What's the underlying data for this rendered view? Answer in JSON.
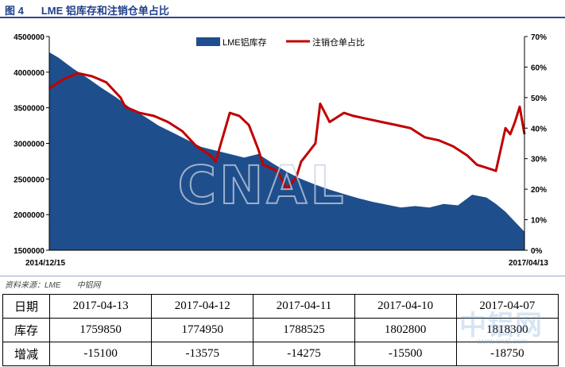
{
  "header": {
    "figure_label": "图 4",
    "title": "LME 铝库存和注销仓单占比"
  },
  "source": {
    "label": "资料来源：LME",
    "org": "中铝网"
  },
  "watermark": {
    "main": "CNAL",
    "brand": "中铝网",
    "site": "www.cnal.com"
  },
  "colors": {
    "area": "#1f4e8c",
    "line": "#c00000"
  },
  "chart_data": {
    "type": "area+line",
    "title": "",
    "x_start_label": "2014/12/15",
    "x_end_label": "2017/04/13",
    "y_left": {
      "min": 1500000,
      "max": 4500000,
      "step": 500000,
      "ticks": [
        "1500000",
        "2000000",
        "2500000",
        "3000000",
        "3500000",
        "4000000",
        "4500000"
      ]
    },
    "y_right": {
      "min": 0,
      "max": 70,
      "step": 10,
      "ticks": [
        "0%",
        "10%",
        "20%",
        "30%",
        "40%",
        "50%",
        "60%",
        "70%"
      ]
    },
    "grid": false,
    "legend_position": "top-right",
    "series": [
      {
        "name": "LME铝库存",
        "type": "area",
        "axis": "left",
        "t": [
          0,
          0.02,
          0.05,
          0.08,
          0.11,
          0.14,
          0.17,
          0.2,
          0.23,
          0.26,
          0.29,
          0.32,
          0.35,
          0.38,
          0.41,
          0.44,
          0.47,
          0.5,
          0.53,
          0.56,
          0.59,
          0.62,
          0.65,
          0.68,
          0.71,
          0.74,
          0.77,
          0.8,
          0.83,
          0.86,
          0.89,
          0.92,
          0.94,
          0.96,
          0.98,
          1.0
        ],
        "values": [
          4280000,
          4200000,
          4050000,
          3920000,
          3780000,
          3650000,
          3500000,
          3380000,
          3250000,
          3150000,
          3050000,
          2950000,
          2900000,
          2850000,
          2800000,
          2850000,
          2720000,
          2600000,
          2500000,
          2420000,
          2350000,
          2290000,
          2230000,
          2180000,
          2140000,
          2100000,
          2120000,
          2100000,
          2150000,
          2130000,
          2280000,
          2240000,
          2150000,
          2040000,
          1900000,
          1759850
        ]
      },
      {
        "name": "注销仓单占比",
        "type": "line",
        "axis": "right",
        "t": [
          0,
          0.03,
          0.06,
          0.09,
          0.12,
          0.15,
          0.16,
          0.19,
          0.22,
          0.25,
          0.28,
          0.31,
          0.34,
          0.35,
          0.38,
          0.4,
          0.42,
          0.44,
          0.45,
          0.48,
          0.5,
          0.52,
          0.53,
          0.56,
          0.57,
          0.59,
          0.61,
          0.62,
          0.64,
          0.67,
          0.7,
          0.73,
          0.76,
          0.79,
          0.82,
          0.85,
          0.88,
          0.9,
          0.92,
          0.94,
          0.95,
          0.96,
          0.97,
          0.98,
          0.99,
          1.0
        ],
        "values": [
          53,
          56,
          58,
          57,
          55,
          50,
          47,
          45,
          44,
          42,
          39,
          34,
          31,
          29,
          45,
          44,
          41,
          33,
          28,
          26,
          20,
          24,
          29,
          35,
          48,
          42,
          44,
          45,
          44,
          43,
          42,
          41,
          40,
          37,
          36,
          34,
          31,
          28,
          27,
          26,
          33,
          40,
          38,
          42,
          47,
          38
        ]
      }
    ]
  },
  "table": {
    "rows": [
      {
        "label": "日期",
        "cells": [
          "2017-04-13",
          "2017-04-12",
          "2017-04-11",
          "2017-04-10",
          "2017-04-07"
        ]
      },
      {
        "label": "库存",
        "cells": [
          "1759850",
          "1774950",
          "1788525",
          "1802800",
          "1818300"
        ]
      },
      {
        "label": "增减",
        "cells": [
          "-15100",
          "-13575",
          "-14275",
          "-15500",
          "-18750"
        ]
      }
    ]
  }
}
